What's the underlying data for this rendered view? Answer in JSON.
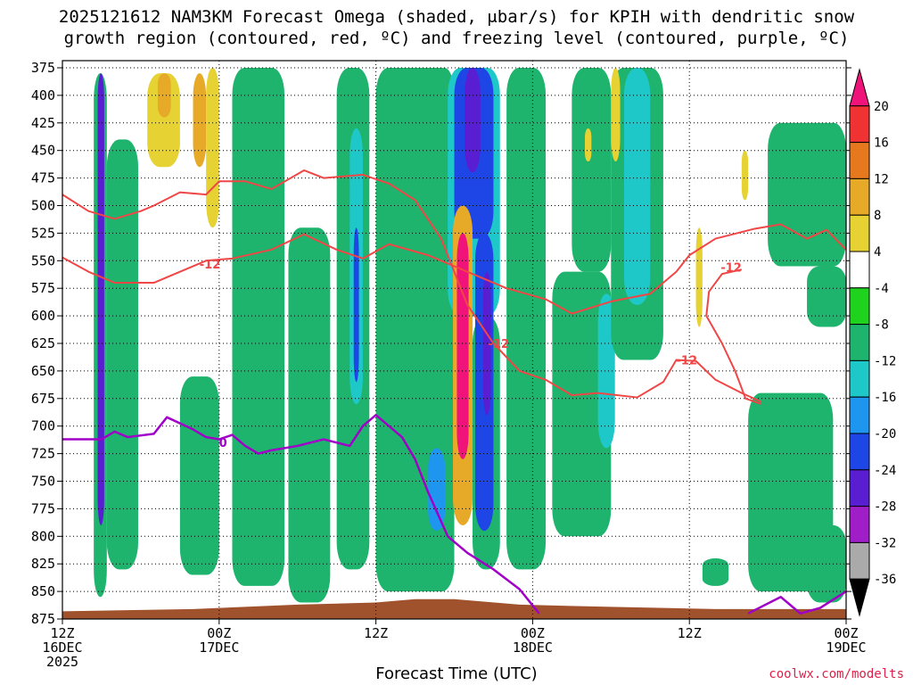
{
  "chart_data": {
    "type": "heatmap",
    "title_line1": "2025121612 NAM3KM Forecast Omega (shaded, μbar/s) for KPIH with dendritic snow",
    "title_line2": "growth region (contoured, red, ºC) and freezing level (contoured, purple, ºC)",
    "xlabel": "Forecast Time (UTC)",
    "ylabel": "",
    "y_axis": {
      "unit": "hPa",
      "range": [
        875,
        375
      ],
      "ticks": [
        375,
        400,
        425,
        450,
        475,
        500,
        525,
        550,
        575,
        600,
        625,
        650,
        675,
        700,
        725,
        750,
        775,
        800,
        825,
        850,
        875
      ]
    },
    "x_axis": {
      "range_hours": [
        0,
        60
      ],
      "ticks": [
        {
          "hour": 0,
          "label": "12Z",
          "sub": "16DEC",
          "sub2": "2025"
        },
        {
          "hour": 12,
          "label": "00Z",
          "sub": "17DEC"
        },
        {
          "hour": 24,
          "label": "12Z",
          "sub": ""
        },
        {
          "hour": 36,
          "label": "00Z",
          "sub": "18DEC"
        },
        {
          "hour": 48,
          "label": "12Z",
          "sub": ""
        },
        {
          "hour": 60,
          "label": "00Z",
          "sub": "19DEC"
        }
      ]
    },
    "grid": "dotted",
    "colorbar": {
      "placement": "right",
      "labels": [
        "20",
        "16",
        "12",
        "8",
        "4",
        "-4",
        "-8",
        "-12",
        "-16",
        "-20",
        "-24",
        "-28",
        "-32",
        "-36"
      ],
      "colors": [
        "#f0147a",
        "#f03232",
        "#e6781e",
        "#e6aa28",
        "#e6d232",
        "#ffffff",
        "#1ed21e",
        "#1eb46e",
        "#1ec8c8",
        "#1e96f0",
        "#1e46e6",
        "#5a1ed2",
        "#a01ec8",
        "#aaaaaa",
        "#000000"
      ]
    },
    "omega_cells": [
      {
        "x": [
          2.4,
          3.4
        ],
        "y": [
          380,
          855
        ],
        "v": -10
      },
      {
        "x": [
          2.7,
          3.2
        ],
        "y": [
          380,
          790
        ],
        "v": -26
      },
      {
        "x": [
          3.4,
          5.8
        ],
        "y": [
          440,
          830
        ],
        "v": -8
      },
      {
        "x": [
          6.5,
          9.0
        ],
        "y": [
          380,
          465
        ],
        "v": 6
      },
      {
        "x": [
          7.3,
          8.3
        ],
        "y": [
          380,
          420
        ],
        "v": 10
      },
      {
        "x": [
          10.0,
          11.0
        ],
        "y": [
          380,
          465
        ],
        "v": 10
      },
      {
        "x": [
          11.0,
          12.0
        ],
        "y": [
          375,
          520
        ],
        "v": 6
      },
      {
        "x": [
          9.0,
          12.0
        ],
        "y": [
          655,
          835
        ],
        "v": -8
      },
      {
        "x": [
          13.0,
          17.0
        ],
        "y": [
          375,
          845
        ],
        "v": -8
      },
      {
        "x": [
          14.0,
          16.0
        ],
        "y": [
          640,
          790
        ],
        "v": -10
      },
      {
        "x": [
          17.3,
          20.5
        ],
        "y": [
          520,
          860
        ],
        "v": -8
      },
      {
        "x": [
          21.0,
          23.5
        ],
        "y": [
          375,
          830
        ],
        "v": -8
      },
      {
        "x": [
          22.0,
          23.0
        ],
        "y": [
          430,
          680
        ],
        "v": -14
      },
      {
        "x": [
          22.3,
          22.7
        ],
        "y": [
          520,
          660
        ],
        "v": -22
      },
      {
        "x": [
          24.0,
          30.0
        ],
        "y": [
          375,
          850
        ],
        "v": -8
      },
      {
        "x": [
          28.5,
          30.0
        ],
        "y": [
          375,
          690
        ],
        "v": -10
      },
      {
        "x": [
          28.0,
          29.3
        ],
        "y": [
          720,
          795
        ],
        "v": -18
      },
      {
        "x": [
          29.5,
          33.5
        ],
        "y": [
          375,
          600
        ],
        "v": -12
      },
      {
        "x": [
          30.0,
          33.0
        ],
        "y": [
          375,
          530
        ],
        "v": -22
      },
      {
        "x": [
          30.8,
          32.0
        ],
        "y": [
          375,
          470
        ],
        "v": -25
      },
      {
        "x": [
          29.9,
          31.4
        ],
        "y": [
          500,
          790
        ],
        "v": 8
      },
      {
        "x": [
          30.2,
          31.1
        ],
        "y": [
          525,
          730
        ],
        "v": 21
      },
      {
        "x": [
          31.4,
          33.5
        ],
        "y": [
          600,
          830
        ],
        "v": -9
      },
      {
        "x": [
          31.6,
          33.0
        ],
        "y": [
          525,
          795
        ],
        "v": -22
      },
      {
        "x": [
          32.2,
          32.8
        ],
        "y": [
          560,
          690
        ],
        "v": -26
      },
      {
        "x": [
          34.0,
          37.0
        ],
        "y": [
          375,
          830
        ],
        "v": -8
      },
      {
        "x": [
          35.0,
          36.5
        ],
        "y": [
          375,
          620
        ],
        "v": -10
      },
      {
        "x": [
          37.5,
          42.0
        ],
        "y": [
          560,
          800
        ],
        "v": -8
      },
      {
        "x": [
          39.0,
          42.0
        ],
        "y": [
          375,
          560
        ],
        "v": -8
      },
      {
        "x": [
          41.0,
          42.3
        ],
        "y": [
          580,
          720
        ],
        "v": -14
      },
      {
        "x": [
          42.0,
          46.0
        ],
        "y": [
          375,
          640
        ],
        "v": -9
      },
      {
        "x": [
          43.0,
          45.0
        ],
        "y": [
          375,
          590
        ],
        "v": -14
      },
      {
        "x": [
          40.0,
          40.5
        ],
        "y": [
          430,
          460
        ],
        "v": 6
      },
      {
        "x": [
          42.0,
          42.7
        ],
        "y": [
          375,
          460
        ],
        "v": 6
      },
      {
        "x": [
          48.5,
          49.0
        ],
        "y": [
          520,
          610
        ],
        "v": 6
      },
      {
        "x": [
          52.0,
          52.5
        ],
        "y": [
          450,
          495
        ],
        "v": 6
      },
      {
        "x": [
          49.0,
          51.0
        ],
        "y": [
          820,
          845
        ],
        "v": -8
      },
      {
        "x": [
          54.0,
          60.0
        ],
        "y": [
          425,
          555
        ],
        "v": -8
      },
      {
        "x": [
          57.0,
          60.0
        ],
        "y": [
          555,
          610
        ],
        "v": -8
      },
      {
        "x": [
          52.5,
          59.0
        ],
        "y": [
          670,
          850
        ],
        "v": -8
      },
      {
        "x": [
          53.5,
          57.0
        ],
        "y": [
          700,
          800
        ],
        "v": -10
      },
      {
        "x": [
          57.0,
          60.0
        ],
        "y": [
          790,
          860
        ],
        "v": -8
      }
    ],
    "dgz_upper": {
      "label": "-12",
      "label_at": [
        11.3,
        553
      ],
      "points": [
        [
          0,
          547
        ],
        [
          2,
          560
        ],
        [
          4,
          570
        ],
        [
          7,
          570
        ],
        [
          9,
          560
        ],
        [
          11,
          550
        ],
        [
          13,
          548
        ],
        [
          16,
          540
        ],
        [
          18.5,
          526
        ],
        [
          21,
          540
        ],
        [
          23,
          548
        ],
        [
          25,
          535
        ],
        [
          28,
          545
        ],
        [
          31,
          560
        ],
        [
          34,
          575
        ],
        [
          37,
          585
        ],
        [
          39,
          598
        ],
        [
          42,
          587
        ],
        [
          45,
          580
        ],
        [
          47,
          560
        ],
        [
          48,
          545
        ],
        [
          50,
          530
        ],
        [
          53,
          521
        ],
        [
          55,
          517
        ],
        [
          57,
          530
        ],
        [
          58.5,
          522
        ],
        [
          60,
          540
        ]
      ]
    },
    "dgz_lower": {
      "label": "-12",
      "label_at": [
        33.4,
        625
      ],
      "points": [
        [
          0,
          490
        ],
        [
          2,
          505
        ],
        [
          4,
          512
        ],
        [
          6,
          505
        ],
        [
          7,
          500
        ],
        [
          9,
          488
        ],
        [
          11,
          490
        ],
        [
          12,
          478
        ],
        [
          14,
          478
        ],
        [
          16,
          485
        ],
        [
          18.5,
          468
        ],
        [
          20,
          475
        ],
        [
          23,
          472
        ],
        [
          25,
          480
        ],
        [
          27,
          495
        ],
        [
          29,
          530
        ],
        [
          31,
          590
        ],
        [
          33,
          625
        ],
        [
          35,
          650
        ],
        [
          37,
          658
        ],
        [
          39,
          672
        ],
        [
          41,
          670
        ],
        [
          44,
          674
        ],
        [
          46,
          660
        ],
        [
          47,
          640
        ],
        [
          48.5,
          641
        ],
        [
          50,
          658
        ],
        [
          52,
          670
        ],
        [
          53.5,
          678
        ]
      ]
    },
    "dgz_right": {
      "label": "-12",
      "label_at": [
        51.2,
        556
      ],
      "points": [
        [
          52,
          558
        ],
        [
          50.5,
          562
        ],
        [
          49.5,
          578
        ],
        [
          49.3,
          600
        ],
        [
          50.5,
          625
        ],
        [
          51.5,
          650
        ],
        [
          52.3,
          675
        ],
        [
          53.5,
          680
        ]
      ]
    },
    "dgz_right_label": {
      "label": "-12",
      "label_at": [
        47.8,
        640
      ]
    },
    "freezing_level": {
      "label": "0",
      "label_at": [
        12.3,
        715
      ],
      "points": [
        [
          0,
          712
        ],
        [
          3,
          712
        ],
        [
          4,
          705
        ],
        [
          5,
          710
        ],
        [
          7,
          707
        ],
        [
          8,
          692
        ],
        [
          10,
          703
        ],
        [
          11,
          710
        ],
        [
          12,
          712
        ],
        [
          13,
          708
        ],
        [
          14,
          718
        ],
        [
          15,
          725
        ],
        [
          16,
          722
        ],
        [
          18,
          718
        ],
        [
          20,
          712
        ],
        [
          22,
          718
        ],
        [
          23,
          700
        ],
        [
          24,
          690
        ],
        [
          25,
          700
        ],
        [
          26,
          710
        ],
        [
          27,
          730
        ],
        [
          28,
          760
        ],
        [
          29.5,
          800
        ],
        [
          31,
          815
        ],
        [
          33,
          830
        ],
        [
          35,
          848
        ],
        [
          36.5,
          870
        ]
      ]
    },
    "freezing_level_right": {
      "points": [
        [
          52.5,
          870
        ],
        [
          55,
          855
        ],
        [
          56.5,
          870
        ],
        [
          58,
          865
        ],
        [
          60,
          850
        ]
      ]
    },
    "terrain_top_hPa": [
      [
        0,
        868
      ],
      [
        10,
        866
      ],
      [
        18,
        862
      ],
      [
        24,
        860
      ],
      [
        27,
        857
      ],
      [
        30,
        857
      ],
      [
        35,
        862
      ],
      [
        42,
        864
      ],
      [
        50,
        866
      ],
      [
        60,
        866
      ]
    ],
    "terrain_color": "#a0522d",
    "contour_colors": {
      "dgz": "#f04646",
      "freezing": "#a000c8"
    }
  },
  "credit": "coolwx.com/modelts"
}
